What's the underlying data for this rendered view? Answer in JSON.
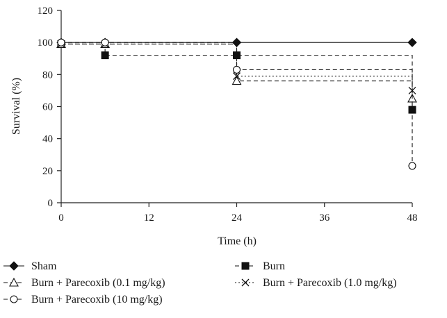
{
  "chart_data": {
    "type": "line",
    "title": "",
    "xlabel": "Time (h)",
    "ylabel": "Survival (%)",
    "xlim": [
      0,
      48
    ],
    "ylim": [
      0,
      120
    ],
    "xticks": [
      0,
      12,
      24,
      36,
      48
    ],
    "yticks": [
      0,
      20,
      40,
      60,
      80,
      100,
      120
    ],
    "grid": false,
    "legend_position": "bottom",
    "step_plot": true,
    "series": [
      {
        "name": "Sham",
        "marker": "filled-diamond",
        "line": "solid",
        "points": [
          [
            0,
            100
          ],
          [
            6,
            100
          ],
          [
            24,
            100
          ],
          [
            48,
            100
          ]
        ]
      },
      {
        "name": "Burn",
        "marker": "filled-square",
        "line": "dashed",
        "points": [
          [
            0,
            99
          ],
          [
            6,
            92
          ],
          [
            24,
            92
          ],
          [
            48,
            58
          ]
        ]
      },
      {
        "name": "Burn + Parecoxib (0.1 mg/kg)",
        "marker": "open-triangle",
        "line": "dashed",
        "points": [
          [
            0,
            99
          ],
          [
            6,
            99
          ],
          [
            24,
            76
          ],
          [
            48,
            65
          ]
        ]
      },
      {
        "name": "Burn + Parecoxib (1.0 mg/kg)",
        "marker": "cross",
        "line": "dotted",
        "points": [
          [
            0,
            99
          ],
          [
            6,
            99
          ],
          [
            24,
            79
          ],
          [
            48,
            70
          ]
        ]
      },
      {
        "name": "Burn + Parecoxib (10 mg/kg)",
        "marker": "open-circle",
        "line": "dashed",
        "points": [
          [
            0,
            100
          ],
          [
            6,
            100
          ],
          [
            24,
            83
          ],
          [
            48,
            23
          ]
        ]
      }
    ]
  },
  "legend": {
    "items": [
      "Sham",
      "Burn",
      "Burn + Parecoxib (0.1 mg/kg)",
      "Burn + Parecoxib (1.0 mg/kg)",
      "Burn + Parecoxib (10 mg/kg)"
    ]
  }
}
